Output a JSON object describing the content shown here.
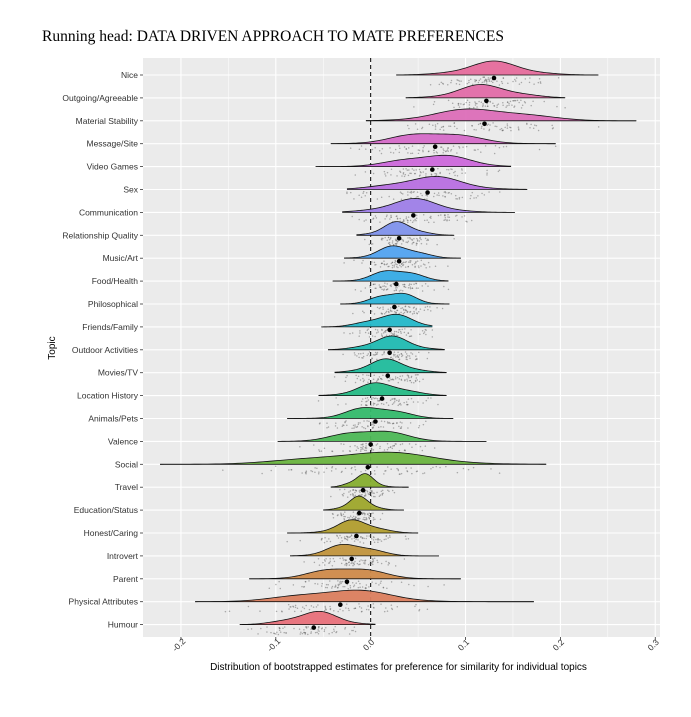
{
  "header": {
    "running_head": "Running head: DATA DRIVEN APPROACH TO MATE PREFERENCES"
  },
  "chart_data": {
    "type": "raincloud",
    "xlabel": "Distribution of bootstrapped estimates for preference for similarity for individual topics",
    "ylabel": "Topic",
    "xlim": [
      -0.24,
      0.305
    ],
    "xticks": [
      -0.2,
      -0.1,
      0.0,
      0.1,
      0.2,
      0.3
    ],
    "xtick_labels": [
      "-0.2",
      "-0.1",
      "0.0",
      "0.1",
      "0.2",
      "0.3"
    ],
    "reference_line": 0.0,
    "grid": true,
    "topics": [
      {
        "name": "Nice",
        "mean": 0.13,
        "min": 0.027,
        "max": 0.24,
        "sd": 0.032,
        "color": "#E66C9C"
      },
      {
        "name": "Outgoing/Agreeable",
        "mean": 0.122,
        "min": 0.037,
        "max": 0.205,
        "sd": 0.03,
        "color": "#E26BA8"
      },
      {
        "name": "Material Stability",
        "mean": 0.12,
        "min": -0.005,
        "max": 0.28,
        "sd": 0.045,
        "color": "#DC6EB8"
      },
      {
        "name": "Message/Site",
        "mean": 0.068,
        "min": -0.042,
        "max": 0.195,
        "sd": 0.035,
        "color": "#D56AC8"
      },
      {
        "name": "Video Games",
        "mean": 0.065,
        "min": -0.058,
        "max": 0.148,
        "sd": 0.033,
        "color": "#CC68DB"
      },
      {
        "name": "Sex",
        "mean": 0.06,
        "min": -0.025,
        "max": 0.165,
        "sd": 0.035,
        "color": "#B86FE2"
      },
      {
        "name": "Communication",
        "mean": 0.045,
        "min": -0.03,
        "max": 0.152,
        "sd": 0.03,
        "color": "#9E7EE8"
      },
      {
        "name": "Relationship Quality",
        "mean": 0.03,
        "min": -0.015,
        "max": 0.088,
        "sd": 0.018,
        "color": "#7F92EC"
      },
      {
        "name": "Music/Art",
        "mean": 0.03,
        "min": -0.028,
        "max": 0.095,
        "sd": 0.02,
        "color": "#52A3F0"
      },
      {
        "name": "Food/Health",
        "mean": 0.027,
        "min": -0.04,
        "max": 0.082,
        "sd": 0.02,
        "color": "#36ABE6"
      },
      {
        "name": "Philosophical",
        "mean": 0.025,
        "min": -0.032,
        "max": 0.083,
        "sd": 0.018,
        "color": "#2AB3D8"
      },
      {
        "name": "Friends/Family",
        "mean": 0.02,
        "min": -0.052,
        "max": 0.065,
        "sd": 0.022,
        "color": "#24B8C9"
      },
      {
        "name": "Outdoor Activities",
        "mean": 0.02,
        "min": -0.045,
        "max": 0.078,
        "sd": 0.022,
        "color": "#20BAB2"
      },
      {
        "name": "Movies/TV",
        "mean": 0.018,
        "min": -0.038,
        "max": 0.08,
        "sd": 0.022,
        "color": "#20BC9C"
      },
      {
        "name": "Location History",
        "mean": 0.012,
        "min": -0.055,
        "max": 0.08,
        "sd": 0.024,
        "color": "#25BB85"
      },
      {
        "name": "Animals/Pets",
        "mean": 0.005,
        "min": -0.088,
        "max": 0.087,
        "sd": 0.025,
        "color": "#34BA6B"
      },
      {
        "name": "Valence",
        "mean": 0.0,
        "min": -0.098,
        "max": 0.122,
        "sd": 0.03,
        "color": "#4DB856"
      },
      {
        "name": "Social",
        "mean": -0.003,
        "min": -0.222,
        "max": 0.185,
        "sd": 0.06,
        "color": "#6AB43F"
      },
      {
        "name": "Travel",
        "mean": -0.008,
        "min": -0.042,
        "max": 0.04,
        "sd": 0.012,
        "color": "#86AE2F"
      },
      {
        "name": "Education/Status",
        "mean": -0.012,
        "min": -0.05,
        "max": 0.035,
        "sd": 0.013,
        "color": "#9EA72B"
      },
      {
        "name": "Honest/Caring",
        "mean": -0.015,
        "min": -0.088,
        "max": 0.05,
        "sd": 0.02,
        "color": "#B19D2E"
      },
      {
        "name": "Introvert",
        "mean": -0.02,
        "min": -0.085,
        "max": 0.072,
        "sd": 0.022,
        "color": "#C1933C"
      },
      {
        "name": "Parent",
        "mean": -0.025,
        "min": -0.128,
        "max": 0.095,
        "sd": 0.03,
        "color": "#CF8A4A"
      },
      {
        "name": "Physical Attributes",
        "mean": -0.032,
        "min": -0.185,
        "max": 0.172,
        "sd": 0.045,
        "color": "#DB7E5E"
      },
      {
        "name": "Humour",
        "mean": -0.06,
        "min": -0.138,
        "max": 0.005,
        "sd": 0.025,
        "color": "#E8707A"
      }
    ]
  }
}
